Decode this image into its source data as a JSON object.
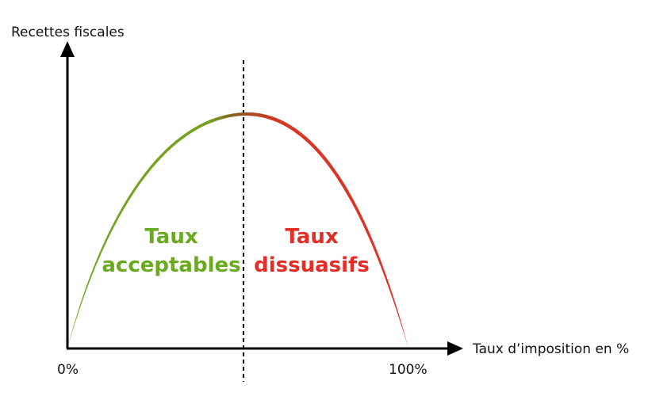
{
  "diagram": {
    "y_axis_label": "Recettes fiscales",
    "x_axis_label": "Taux d’imposition en %",
    "x_tick_start": "0%",
    "x_tick_end": "100%",
    "acceptable_zone": {
      "line1": "Taux",
      "line2": "acceptables",
      "color": "#6aaa1e"
    },
    "dissuasive_zone": {
      "line1": "Taux",
      "line2": "dissuasifs",
      "color": "#e52d27"
    },
    "curve_colors": {
      "start": "#6aaa1e",
      "peak": "#8a5a22",
      "end": "#e52d27"
    },
    "axis_color": "#000000"
  }
}
